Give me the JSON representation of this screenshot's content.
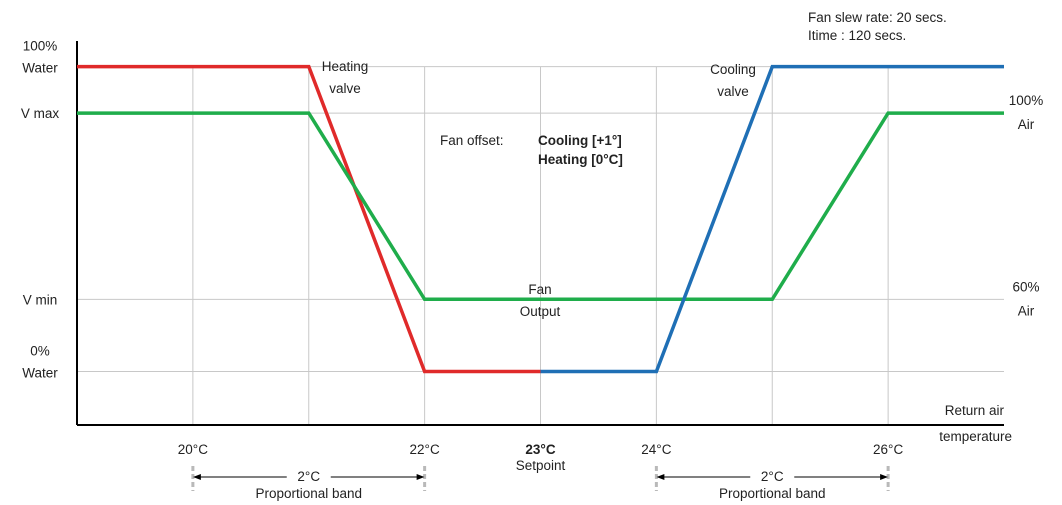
{
  "chart_data": {
    "type": "line",
    "x_axis": {
      "label_line1": "Return air",
      "label_line2": "temperature",
      "unit": "°C",
      "min": 19.0,
      "max": 27.0,
      "ticks": [
        {
          "x": 20,
          "label": "20°C",
          "bold": false
        },
        {
          "x": 21,
          "label": "",
          "bold": false
        },
        {
          "x": 22,
          "label": "22°C",
          "bold": false
        },
        {
          "x": 23,
          "label": "23°C",
          "bold": true,
          "sublabel": "Setpoint"
        },
        {
          "x": 24,
          "label": "24°C",
          "bold": false
        },
        {
          "x": 25,
          "label": "",
          "bold": false
        },
        {
          "x": 26,
          "label": "26°C",
          "bold": false
        }
      ]
    },
    "y_levels": [
      {
        "key": "water100",
        "value": 100,
        "left_line1": "100%",
        "left_line2": "Water",
        "right_line1": "",
        "right_line2": ""
      },
      {
        "key": "vmax",
        "value": 80,
        "left_line1": "V max",
        "left_line2": "",
        "right_line1": "100%",
        "right_line2": "Air"
      },
      {
        "key": "vmin",
        "value": 0,
        "left_line1": "V min",
        "left_line2": "",
        "right_line1": "60%",
        "right_line2": "Air"
      },
      {
        "key": "water0",
        "value": -31,
        "left_line1": "0%",
        "left_line2": "Water",
        "right_line1": "",
        "right_line2": ""
      }
    ],
    "y_range": [
      -54,
      111
    ],
    "series": [
      {
        "key": "heating",
        "color": "#e02a2a",
        "label_line1": "Heating",
        "label_line2": "valve",
        "points": [
          [
            19.0,
            100
          ],
          [
            21.0,
            100
          ],
          [
            22.0,
            -31
          ],
          [
            23.0,
            -31
          ]
        ]
      },
      {
        "key": "fan",
        "color": "#1fad4b",
        "label_line1": "Fan",
        "label_line2": "Output",
        "points": [
          [
            19.0,
            80
          ],
          [
            21.0,
            80
          ],
          [
            22.0,
            0
          ],
          [
            25.0,
            0
          ],
          [
            26.0,
            80
          ],
          [
            27.0,
            80
          ]
        ]
      },
      {
        "key": "cooling",
        "color": "#1f6fb5",
        "label_line1": "Cooling",
        "label_line2": "valve",
        "points": [
          [
            23.0,
            -31
          ],
          [
            24.0,
            -31
          ],
          [
            25.0,
            100
          ],
          [
            27.0,
            100
          ]
        ]
      }
    ],
    "annotations": {
      "fan_offset_label": "Fan offset:",
      "fan_offset_cooling": "Cooling [+1°]",
      "fan_offset_heating": "Heating [0°C]",
      "slew_rate": "Fan slew rate: 20 secs.",
      "itime": "Itime : 120 secs."
    },
    "bands": [
      {
        "from": 20,
        "to": 22,
        "value_label": "2°C",
        "name": "Proportional band"
      },
      {
        "from": 24,
        "to": 26,
        "value_label": "2°C",
        "name": "Proportional band"
      }
    ],
    "grid_color": "#c8c8c8",
    "axis_color": "#000000"
  }
}
